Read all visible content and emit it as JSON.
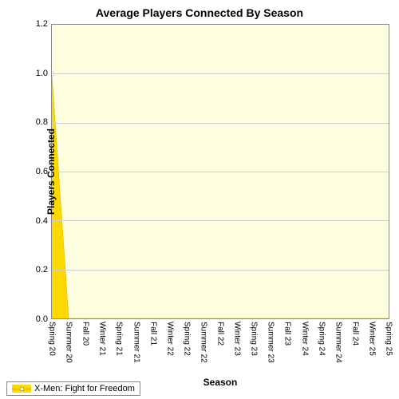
{
  "chart": {
    "type": "area",
    "title": "Average Players Connected By Season",
    "title_fontsize": 14,
    "xlabel": "Season",
    "ylabel": "Players Connected",
    "label_fontsize": 12,
    "categories": [
      "Spring 20",
      "Summer 20",
      "Fall 20",
      "Winter 21",
      "Spring 21",
      "Summer 21",
      "Fall 21",
      "Winter 22",
      "Spring 22",
      "Summer 22",
      "Fall 22",
      "Winter 23",
      "Spring 23",
      "Summer 23",
      "Fall 23",
      "Winter 24",
      "Spring 24",
      "Summer 24",
      "Fall 24",
      "Winter 25",
      "Spring 25"
    ],
    "values": [
      1.0,
      0,
      0,
      0,
      0,
      0,
      0,
      0,
      0,
      0,
      0,
      0,
      0,
      0,
      0,
      0,
      0,
      0,
      0,
      0,
      0
    ],
    "ylim": [
      0.0,
      1.2
    ],
    "ytick_step": 0.2,
    "yticks": [
      "0.0",
      "0.2",
      "0.4",
      "0.6",
      "0.8",
      "1.0",
      "1.2"
    ],
    "background_color": "#feffe0",
    "grid_color": "#d0d0d0",
    "border_color": "#888888",
    "series_color": "#ffd800",
    "series_line_color": "#d4b300",
    "marker_style": "square-open",
    "marker_size": 5,
    "legend_label": "X-Men: Fight for Freedom",
    "xtick_rotation": 90,
    "xtick_fontsize": 10,
    "ytick_fontsize": 11
  }
}
